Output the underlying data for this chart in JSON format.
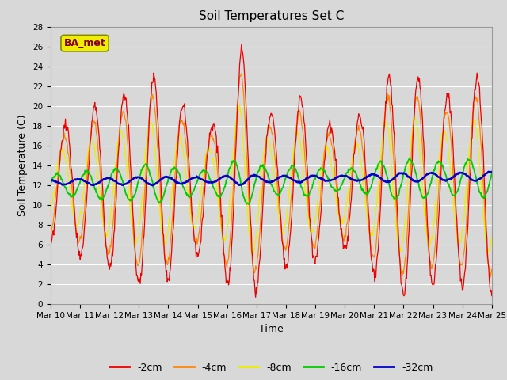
{
  "title": "Soil Temperatures Set C",
  "xlabel": "Time",
  "ylabel": "Soil Temperature (C)",
  "ylim": [
    0,
    28
  ],
  "yticks": [
    0,
    2,
    4,
    6,
    8,
    10,
    12,
    14,
    16,
    18,
    20,
    22,
    24,
    26,
    28
  ],
  "bg_color": "#d8d8d8",
  "plot_bg": "#d8d8d8",
  "grid_color": "#ffffff",
  "colors": {
    "-2cm": "#ee0000",
    "-4cm": "#ff8800",
    "-8cm": "#eeee00",
    "-16cm": "#00cc00",
    "-32cm": "#0000cc"
  },
  "legend_label": "BA_met",
  "legend_box_facecolor": "#eeee00",
  "legend_box_edgecolor": "#888800",
  "legend_text_color": "#880000",
  "title_fontsize": 11,
  "axis_fontsize": 9,
  "tick_fontsize": 7.5
}
